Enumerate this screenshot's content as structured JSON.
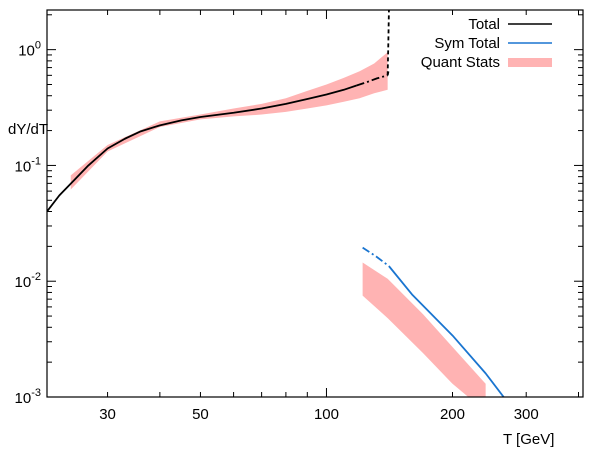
{
  "chart_data": {
    "type": "line",
    "title": "",
    "xlabel": "T [GeV]",
    "ylabel": "dY/dT",
    "x_scale": "log",
    "y_scale": "log",
    "xlim": [
      21.5,
      410
    ],
    "ylim": [
      0.001,
      2.2
    ],
    "grid": false,
    "legend_position": "top-right",
    "x_ticks": [
      {
        "value": 30,
        "label": "30"
      },
      {
        "value": 50,
        "label": "50"
      },
      {
        "value": 100,
        "label": "100"
      },
      {
        "value": 200,
        "label": "200"
      },
      {
        "value": 300,
        "label": "300"
      }
    ],
    "y_ticks": [
      {
        "value": 0.001,
        "base": "10",
        "exp": "-3"
      },
      {
        "value": 0.01,
        "base": "10",
        "exp": "-2"
      },
      {
        "value": 0.1,
        "base": "10",
        "exp": "-1"
      },
      {
        "value": 1,
        "base": "10",
        "exp": "0"
      }
    ],
    "series": [
      {
        "name": "Total",
        "color": "#000000",
        "style": "line",
        "segments": [
          {
            "dash": "solid",
            "x": [
              21.5,
              23,
              25,
              27,
              30,
              33,
              36,
              40,
              45,
              50,
              60,
              70,
              80,
              90,
              100,
              110,
              118
            ],
            "y": [
              0.04,
              0.055,
              0.075,
              0.1,
              0.14,
              0.17,
              0.197,
              0.222,
              0.245,
              0.262,
              0.285,
              0.31,
              0.34,
              0.375,
              0.41,
              0.45,
              0.49
            ]
          },
          {
            "dash": "dashdot",
            "x": [
              118,
              125,
              132,
              140
            ],
            "y": [
              0.49,
              0.525,
              0.565,
              0.6
            ]
          },
          {
            "dash": "dashed",
            "x": [
              140,
              140.5,
              141
            ],
            "y": [
              0.6,
              1.1,
              2.2
            ]
          },
          {
            "dash": "dashed",
            "x": [
              140,
              141
            ],
            "y": [
              0.6,
              0.68
            ]
          }
        ]
      },
      {
        "name": "Sym Total",
        "color": "#1a75d0",
        "style": "line",
        "segments": [
          {
            "dash": "dashdot",
            "x": [
              122,
              131,
              141
            ],
            "y": [
              0.0195,
              0.0165,
              0.0135
            ]
          },
          {
            "dash": "solid",
            "x": [
              141,
              160,
              200,
              240,
              265
            ],
            "y": [
              0.0135,
              0.0077,
              0.0034,
              0.0016,
              0.001
            ]
          }
        ]
      },
      {
        "name": "Quant Stats",
        "color": "#ffb3b3",
        "style": "band",
        "x": [
          24.5,
          30,
          40,
          50,
          60,
          70,
          80,
          90,
          100,
          110,
          120,
          130,
          140
        ],
        "lower": [
          0.062,
          0.132,
          0.215,
          0.25,
          0.265,
          0.275,
          0.29,
          0.31,
          0.33,
          0.355,
          0.38,
          0.42,
          0.45
        ],
        "upper": [
          0.082,
          0.15,
          0.24,
          0.275,
          0.31,
          0.34,
          0.38,
          0.44,
          0.5,
          0.57,
          0.65,
          0.76,
          0.95
        ],
        "segment2": {
          "x": [
            122,
            140,
            170,
            200,
            240
          ],
          "lower": [
            0.0075,
            0.0048,
            0.0024,
            0.0013,
            0.00075
          ],
          "upper": [
            0.0145,
            0.0105,
            0.0052,
            0.0027,
            0.0013
          ]
        }
      }
    ]
  }
}
